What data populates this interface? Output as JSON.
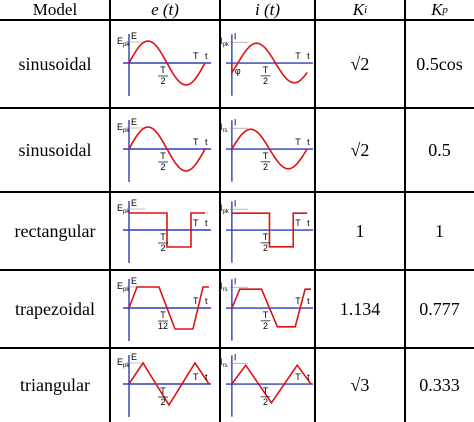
{
  "header": [
    {
      "text": "Model"
    },
    {
      "text": "e (t)"
    },
    {
      "text": "i (t)"
    },
    {
      "text": "K",
      "sub": "i"
    },
    {
      "text": "K",
      "sub": "p"
    }
  ],
  "rows": [
    {
      "model": "sinusoidal",
      "e_plot": {
        "peak": "E",
        "peak_sub": "pk",
        "amp": "E",
        "period": "T",
        "half_num": "T",
        "half_den": "2",
        "time": "t"
      },
      "i_plot": {
        "peak": "I",
        "peak_sub": "pk",
        "amp": "I",
        "phase": "φ",
        "period": "T",
        "half_num": "T",
        "half_den": "2",
        "time": "t"
      },
      "ki": "√2",
      "kp": "0.5cos"
    },
    {
      "model": "sinusoidal",
      "e_plot": {
        "peak": "E",
        "peak_sub": "pk",
        "amp": "E",
        "period": "T",
        "half_num": "T",
        "half_den": "2",
        "time": "t"
      },
      "i_plot": {
        "peak": "I",
        "peak_sub": "rs",
        "amp": "I",
        "period": "T",
        "half_num": "T",
        "half_den": "2",
        "time": "t"
      },
      "ki": "√2",
      "kp": "0.5"
    },
    {
      "model": "rectangular",
      "e_plot": {
        "peak": "E",
        "peak_sub": "pk",
        "amp": "E",
        "period": "T",
        "half_num": "T",
        "half_den": "2",
        "time": "t"
      },
      "i_plot": {
        "peak": "I",
        "peak_sub": "pk",
        "amp": "I",
        "period": "T",
        "half_num": "T",
        "half_den": "2",
        "time": "t"
      },
      "ki": "1",
      "kp": "1"
    },
    {
      "model": "trapezoidal",
      "e_plot": {
        "peak": "E",
        "peak_sub": "pk",
        "amp": "E",
        "period": "T",
        "half_num": "T",
        "half_den": "12",
        "time": "t"
      },
      "i_plot": {
        "peak": "I",
        "peak_sub": "rs",
        "amp": "I",
        "period": "T",
        "half_num": "T",
        "half_den": "2",
        "time": "t"
      },
      "ki": "1.134",
      "kp": "0.777"
    },
    {
      "model": "triangular",
      "e_plot": {
        "peak": "E",
        "peak_sub": "pk",
        "amp": "E",
        "period": "T",
        "half_num": "T",
        "half_den": "2",
        "time": "t"
      },
      "i_plot": {
        "peak": "I",
        "peak_sub": "rs",
        "amp": "I",
        "period": "T",
        "half_num": "T",
        "half_den": "2",
        "time": "t"
      },
      "ki": "√3",
      "kp": "0.333"
    }
  ]
}
